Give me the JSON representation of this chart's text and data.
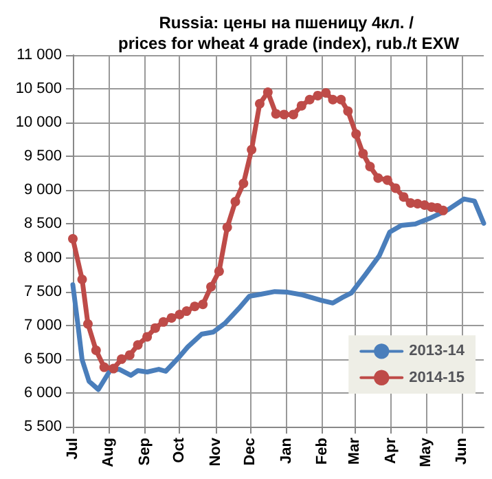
{
  "chart_data": {
    "type": "line",
    "title": "Russia: цены на пшеницу 4кл. / prices for wheat 4 grade (index), rub./t EXW",
    "xlim": [
      "2014-07-01",
      "2015-06-20"
    ],
    "xticks": [
      {
        "value": "2014-07-01",
        "label": "Jul"
      },
      {
        "value": "2014-08-01",
        "label": "Aug"
      },
      {
        "value": "2014-09-01",
        "label": "Sep"
      },
      {
        "value": "2014-10-01",
        "label": "Oct"
      },
      {
        "value": "2014-11-01",
        "label": "Nov"
      },
      {
        "value": "2014-12-01",
        "label": "Dec"
      },
      {
        "value": "2015-01-01",
        "label": "Jan"
      },
      {
        "value": "2015-02-01",
        "label": "Feb"
      },
      {
        "value": "2015-03-01",
        "label": "Mar"
      },
      {
        "value": "2015-04-01",
        "label": "Apr"
      },
      {
        "value": "2015-05-01",
        "label": "May"
      },
      {
        "value": "2015-06-01",
        "label": "Jun"
      }
    ],
    "ylim": [
      5500,
      11000
    ],
    "yticks": [
      {
        "value": 5500,
        "label": "5 500"
      },
      {
        "value": 6000,
        "label": "6 000"
      },
      {
        "value": 6500,
        "label": "6 500"
      },
      {
        "value": 7000,
        "label": "7 000"
      },
      {
        "value": 7500,
        "label": "7 500"
      },
      {
        "value": 8000,
        "label": "8 000"
      },
      {
        "value": 8500,
        "label": "8 500"
      },
      {
        "value": 9000,
        "label": "9 000"
      },
      {
        "value": 9500,
        "label": "9 500"
      },
      {
        "value": 10000,
        "label": "10 000"
      },
      {
        "value": 10500,
        "label": "10 500"
      },
      {
        "value": 11000,
        "label": "11 000"
      }
    ],
    "grid": true,
    "legend": "bottom right",
    "series": [
      {
        "name": "2013-14",
        "color": "#4a7ebb",
        "marker": "none",
        "x": [
          "2014-07-01",
          "2014-07-05",
          "2014-07-09",
          "2014-07-15",
          "2014-07-23",
          "2014-08-02",
          "2014-08-10",
          "2014-08-20",
          "2014-08-26",
          "2014-09-03",
          "2014-09-13",
          "2014-09-19",
          "2014-09-30",
          "2014-10-08",
          "2014-10-20",
          "2014-10-30",
          "2014-11-09",
          "2014-11-21",
          "2014-11-30",
          "2014-12-10",
          "2014-12-22",
          "2015-01-02",
          "2015-01-15",
          "2015-01-31",
          "2015-02-10",
          "2015-02-18",
          "2015-02-26",
          "2015-03-10",
          "2015-03-22",
          "2015-03-31",
          "2015-04-10",
          "2015-04-22",
          "2015-05-04",
          "2015-05-20",
          "2015-06-03",
          "2015-06-12",
          "2015-06-20"
        ],
        "values": [
          7600,
          7060,
          6490,
          6170,
          6050,
          6330,
          6350,
          6260,
          6330,
          6310,
          6350,
          6320,
          6520,
          6680,
          6870,
          6900,
          7030,
          7250,
          7430,
          7460,
          7500,
          7490,
          7450,
          7370,
          7330,
          7410,
          7480,
          7750,
          8030,
          8380,
          8480,
          8500,
          8580,
          8710,
          8870,
          8840,
          8510
        ]
      },
      {
        "name": "2014-15",
        "color": "#be4b48",
        "marker": "circle",
        "x": [
          "2014-07-01",
          "2014-07-09",
          "2014-07-14",
          "2014-07-21",
          "2014-07-28",
          "2014-08-05",
          "2014-08-12",
          "2014-08-19",
          "2014-08-26",
          "2014-09-03",
          "2014-09-10",
          "2014-09-17",
          "2014-09-24",
          "2014-10-01",
          "2014-10-07",
          "2014-10-14",
          "2014-10-21",
          "2014-10-28",
          "2014-11-04",
          "2014-11-11",
          "2014-11-18",
          "2014-11-25",
          "2014-12-02",
          "2014-12-09",
          "2014-12-16",
          "2014-12-23",
          "2014-12-30",
          "2015-01-07",
          "2015-01-14",
          "2015-01-21",
          "2015-01-28",
          "2015-02-04",
          "2015-02-10",
          "2015-02-17",
          "2015-02-23",
          "2015-03-02",
          "2015-03-08",
          "2015-03-14",
          "2015-03-21",
          "2015-03-29",
          "2015-04-05",
          "2015-04-12",
          "2015-04-18",
          "2015-04-24",
          "2015-04-30",
          "2015-05-06",
          "2015-05-11",
          "2015-05-16"
        ],
        "values": [
          8280,
          7680,
          7020,
          6630,
          6380,
          6360,
          6500,
          6560,
          6710,
          6830,
          6960,
          7050,
          7110,
          7160,
          7210,
          7280,
          7310,
          7570,
          7800,
          8450,
          8830,
          9100,
          9600,
          10280,
          10450,
          10130,
          10120,
          10120,
          10250,
          10340,
          10400,
          10440,
          10340,
          10340,
          10170,
          9830,
          9540,
          9350,
          9180,
          9150,
          9030,
          8900,
          8810,
          8800,
          8780,
          8750,
          8740,
          8700
        ]
      }
    ]
  }
}
